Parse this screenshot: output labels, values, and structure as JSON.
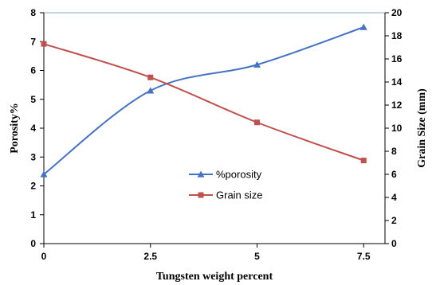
{
  "chart_data": {
    "type": "line",
    "xlabel": "Tungsten weight percent",
    "ylabel_left": "Porosity%",
    "ylabel_right": "Grain Size (mm)",
    "x_ticks": [
      "0",
      "2.5",
      "5",
      "7.5"
    ],
    "x_range": [
      0,
      8
    ],
    "y_left_range": [
      0,
      8
    ],
    "y_left_ticks": [
      "0",
      "1",
      "2",
      "3",
      "4",
      "5",
      "6",
      "7",
      "8"
    ],
    "y_right_range": [
      0,
      20
    ],
    "y_right_ticks": [
      "0",
      "2",
      "4",
      "6",
      "8",
      "10",
      "12",
      "14",
      "16",
      "18",
      "20"
    ],
    "legend_position": "center",
    "grid": false,
    "series": [
      {
        "name": "%porosity",
        "axis": "left",
        "color": "#4472C4",
        "marker": "triangle",
        "x": [
          0,
          2.5,
          5,
          7.5
        ],
        "y": [
          2.4,
          5.3,
          6.2,
          7.5
        ]
      },
      {
        "name": "Grain size",
        "axis": "right",
        "color": "#C0504D",
        "marker": "square",
        "x": [
          0,
          2.5,
          5,
          7.5
        ],
        "y": [
          17.3,
          14.4,
          10.5,
          7.2
        ]
      }
    ]
  }
}
